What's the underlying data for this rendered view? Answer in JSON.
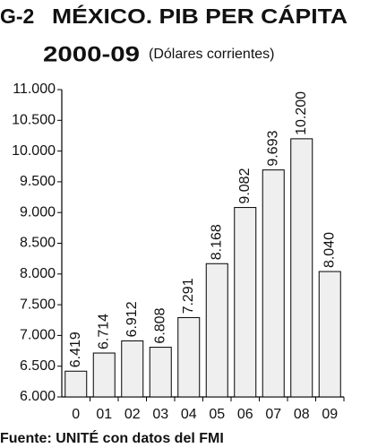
{
  "chart_data": {
    "type": "bar",
    "label": "G-2",
    "title": "MÉXICO. PIB PER CÁPITA",
    "period": "2000-09",
    "subtitle": "(Dólares corrientes)",
    "source": "Fuente: UNITÉ con datos del FMI",
    "categories": [
      "0",
      "01",
      "02",
      "03",
      "04",
      "05",
      "06",
      "07",
      "08",
      "09"
    ],
    "values": [
      6419,
      6714,
      6912,
      6808,
      7291,
      8168,
      9082,
      9693,
      10200,
      8040
    ],
    "value_labels": [
      "6.419",
      "6.714",
      "6.912",
      "6.808",
      "7.291",
      "8.168",
      "9.082",
      "9.693",
      "10.200",
      "8.040"
    ],
    "color": "#efefef",
    "ylim": [
      6000,
      11000
    ],
    "yticks": [
      {
        "value": 6000,
        "label": "6.000"
      },
      {
        "value": 6500,
        "label": "6.500"
      },
      {
        "value": 7000,
        "label": "7.000"
      },
      {
        "value": 7500,
        "label": "7.500"
      },
      {
        "value": 8000,
        "label": "8.000"
      },
      {
        "value": 8500,
        "label": "8.500"
      },
      {
        "value": 9000,
        "label": "9.000"
      },
      {
        "value": 9500,
        "label": "9.500"
      },
      {
        "value": 10000,
        "label": "10.000"
      },
      {
        "value": 10500,
        "label": "10.500"
      },
      {
        "value": 11000,
        "label": "11.000"
      }
    ]
  }
}
